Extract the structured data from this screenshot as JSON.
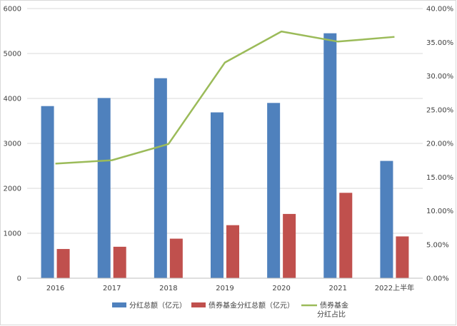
{
  "chart_data": {
    "type": "bar",
    "categories": [
      "2016",
      "2017",
      "2018",
      "2019",
      "2020",
      "2021",
      "2022上半年"
    ],
    "series": [
      {
        "name": "分红总额（亿元）",
        "kind": "bar",
        "axis": "left",
        "color": "#4f81bd",
        "values": [
          3830,
          4010,
          4450,
          3690,
          3900,
          5450,
          2610
        ]
      },
      {
        "name": "债券基金分红总额（亿元）",
        "kind": "bar",
        "axis": "left",
        "color": "#c0504d",
        "values": [
          650,
          700,
          880,
          1180,
          1430,
          1900,
          930
        ]
      },
      {
        "name_lines": [
          "债券基金",
          "分红占比"
        ],
        "kind": "line",
        "axis": "right",
        "color": "#9bbb59",
        "values": [
          0.17,
          0.175,
          0.199,
          0.32,
          0.366,
          0.351,
          0.358
        ]
      }
    ],
    "left_axis": {
      "min": 0,
      "max": 6000,
      "step": 1000,
      "tick_labels": [
        "0",
        "1000",
        "2000",
        "3000",
        "4000",
        "5000",
        "6000"
      ]
    },
    "right_axis": {
      "min": 0,
      "max": 0.4,
      "step": 0.05,
      "tick_labels": [
        "0.00%",
        "5.00%",
        "10.00%",
        "15.00%",
        "20.00%",
        "25.00%",
        "30.00%",
        "35.00%",
        "40.00%"
      ]
    },
    "grid": true,
    "legend_position": "bottom"
  }
}
